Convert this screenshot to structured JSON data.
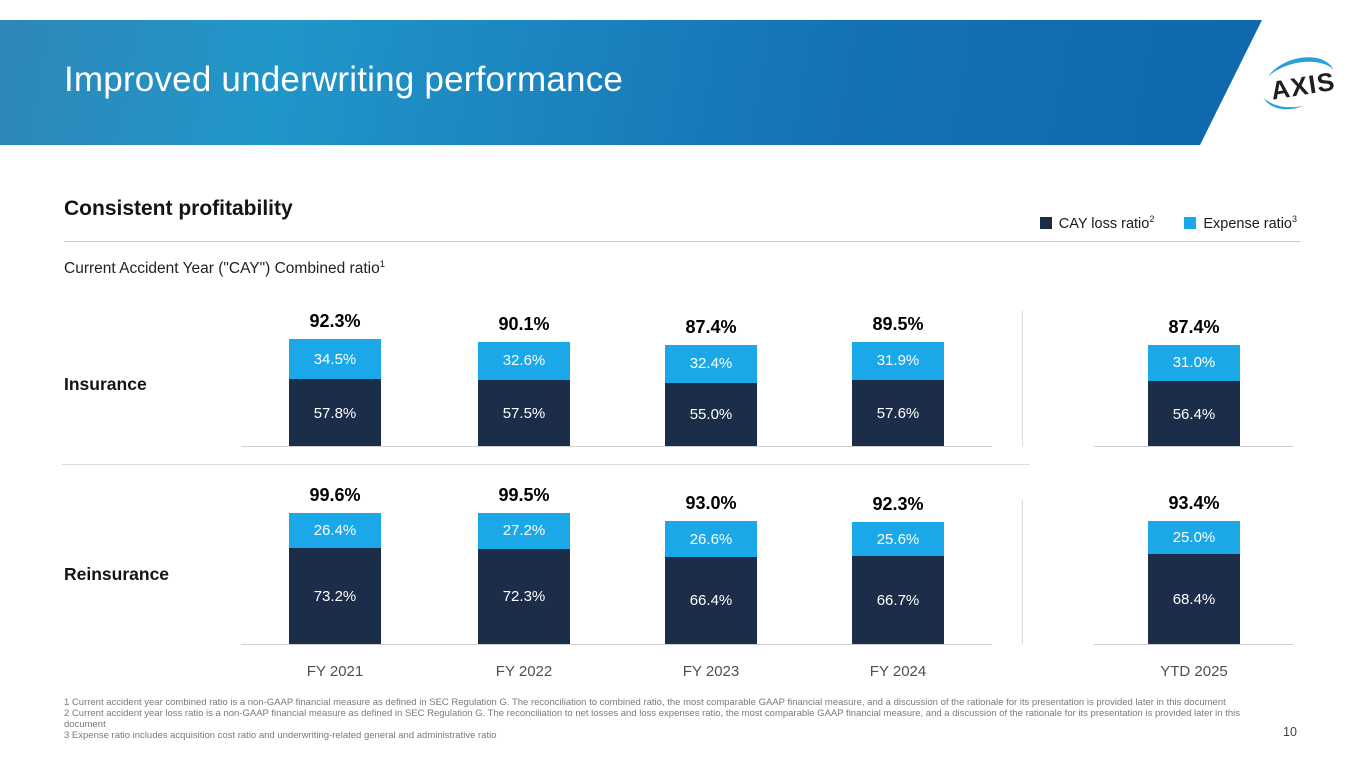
{
  "slide": {
    "title": "Improved underwriting performance",
    "logo_text": "AXIS",
    "page_number": "10"
  },
  "section": {
    "heading": "Consistent profitability"
  },
  "legend": [
    {
      "label": "CAY loss ratio",
      "superscript": "2",
      "color": "#1C2D4A"
    },
    {
      "label": "Expense ratio",
      "superscript": "3",
      "color": "#1BA8E8"
    }
  ],
  "chart_data": {
    "type": "bar",
    "stacked": true,
    "title": "Current Accident Year (\"CAY\") Combined ratio",
    "title_superscript": "1",
    "unit": "%",
    "legend_position": "top-right",
    "grid": false,
    "categories": [
      "FY 2021",
      "FY 2022",
      "FY 2023",
      "FY 2024",
      "YTD 2025"
    ],
    "rows": [
      {
        "label": "Insurance",
        "totals": [
          "92.3%",
          "90.1%",
          "87.4%",
          "89.5%",
          "87.4%"
        ],
        "total_values": [
          92.3,
          90.1,
          87.4,
          89.5,
          87.4
        ],
        "series": [
          {
            "name": "CAY loss ratio",
            "color": "#1C2D4A",
            "values": [
              57.8,
              57.5,
              55.0,
              57.6,
              56.4
            ],
            "labels": [
              "57.8%",
              "57.5%",
              "55.0%",
              "57.6%",
              "56.4%"
            ]
          },
          {
            "name": "Expense ratio",
            "color": "#1BA8E8",
            "values": [
              34.5,
              32.6,
              32.4,
              31.9,
              31.0
            ],
            "labels": [
              "34.5%",
              "32.6%",
              "32.4%",
              "31.9%",
              "31.0%"
            ]
          }
        ]
      },
      {
        "label": "Reinsurance",
        "totals": [
          "99.6%",
          "99.5%",
          "93.0%",
          "92.3%",
          "93.4%"
        ],
        "total_values": [
          99.6,
          99.5,
          93.0,
          92.3,
          93.4
        ],
        "series": [
          {
            "name": "CAY loss ratio",
            "color": "#1C2D4A",
            "values": [
              73.2,
              72.3,
              66.4,
              66.7,
              68.4
            ],
            "labels": [
              "73.2%",
              "72.3%",
              "66.4%",
              "66.7%",
              "68.4%"
            ]
          },
          {
            "name": "Expense ratio",
            "color": "#1BA8E8",
            "values": [
              26.4,
              27.2,
              26.6,
              25.6,
              25.0
            ],
            "labels": [
              "26.4%",
              "27.2%",
              "26.6%",
              "25.6%",
              "25.0%"
            ]
          }
        ]
      }
    ]
  },
  "footnotes": [
    "1 Current accident year combined ratio is a non-GAAP financial measure as defined in SEC Regulation G. The reconciliation to combined ratio, the most comparable GAAP financial measure, and a discussion of the rationale for its presentation is provided later in this document",
    "2 Current accident year loss ratio is a non-GAAP financial measure as defined in SEC Regulation G. The reconciliation to net losses and loss expenses ratio, the most comparable GAAP financial measure, and a discussion of the rationale for its presentation is provided later in this document",
    "3 Expense ratio includes acquisition cost ratio and underwriting-related general and administrative ratio"
  ]
}
